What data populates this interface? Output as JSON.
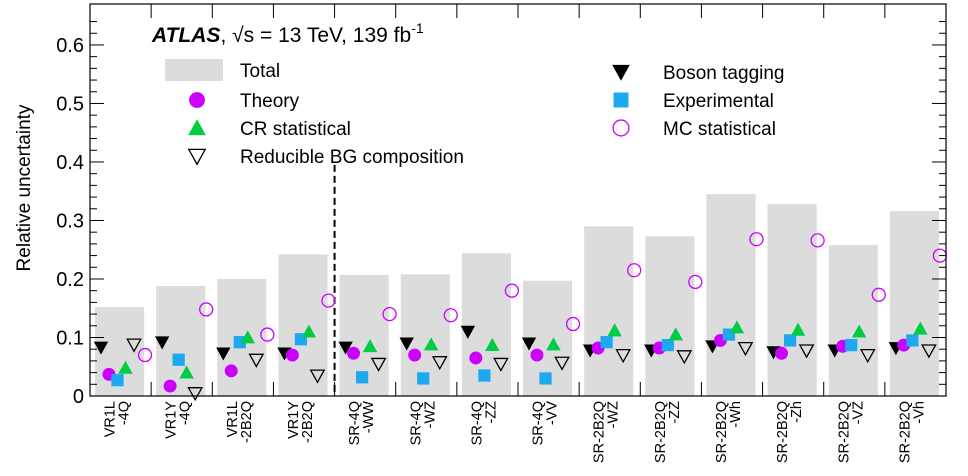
{
  "chart_data": {
    "type": "bar",
    "title": "",
    "xlabel": "",
    "ylabel": "Relative uncertainty",
    "ylim": [
      0,
      0.67
    ],
    "yticks": [
      "0",
      "0.1",
      "0.2",
      "0.3",
      "0.4",
      "0.5",
      "0.6"
    ],
    "ytick_values": [
      0,
      0.1,
      0.2,
      0.3,
      0.4,
      0.5,
      0.6
    ],
    "categories": [
      [
        "VR1L",
        "-4Q"
      ],
      [
        "VR1Y",
        "-4Q"
      ],
      [
        "VR1L",
        "-2B2Q"
      ],
      [
        "VR1Y",
        "-2B2Q"
      ],
      [
        "SR-4Q",
        "-WW"
      ],
      [
        "SR-4Q",
        "-WZ"
      ],
      [
        "SR-4Q",
        "-ZZ"
      ],
      [
        "SR-4Q",
        "-VV"
      ],
      [
        "SR-2B2Q",
        "-WZ"
      ],
      [
        "SR-2B2Q",
        "-ZZ"
      ],
      [
        "SR-2B2Q",
        "-Wh"
      ],
      [
        "SR-2B2Q",
        "-Zh"
      ],
      [
        "SR-2B2Q",
        "-VZ"
      ],
      [
        "SR-2B2Q",
        "-Vh"
      ]
    ],
    "divider_after_category": 4,
    "annotation": {
      "experiment": "ATLAS",
      "energy_text": ", √s = 13 TeV, 139 fb",
      "lumi_exp": "-1"
    },
    "legend": {
      "placement": "top",
      "left": [
        {
          "label": "Total",
          "marker": "bar",
          "color": "#dcdcdc"
        },
        {
          "label": "Theory",
          "marker": "circle-filled",
          "color": "#cc00ff"
        },
        {
          "label": "CR statistical",
          "marker": "triangle-up",
          "color": "#00cc44"
        },
        {
          "label": "Reducible BG composition",
          "marker": "triangle-down-open",
          "color": "#000000"
        }
      ],
      "right": [
        {
          "label": "Boson tagging",
          "marker": "triangle-down",
          "color": "#000000"
        },
        {
          "label": "Experimental",
          "marker": "square",
          "color": "#1ea8f0"
        },
        {
          "label": "MC statistical",
          "marker": "circle-open",
          "color": "#cc00ff"
        }
      ]
    },
    "series": [
      {
        "name": "Total",
        "marker": "bar",
        "color": "#dcdcdc",
        "values": [
          0.152,
          0.188,
          0.2,
          0.242,
          0.207,
          0.208,
          0.244,
          0.197,
          0.29,
          0.273,
          0.345,
          0.328,
          0.258,
          0.316
        ]
      },
      {
        "name": "Boson tagging",
        "marker": "triangle-down",
        "color": "#000000",
        "values": [
          0.083,
          0.092,
          0.073,
          0.073,
          0.083,
          0.09,
          0.11,
          0.09,
          0.078,
          0.078,
          0.085,
          0.075,
          0.078,
          0.082
        ]
      },
      {
        "name": "Theory",
        "marker": "circle-filled",
        "color": "#cc00ff",
        "values": [
          0.037,
          0.017,
          0.043,
          0.07,
          0.073,
          0.07,
          0.065,
          0.07,
          0.082,
          0.082,
          0.095,
          0.073,
          0.085,
          0.087
        ]
      },
      {
        "name": "Experimental",
        "marker": "square",
        "color": "#1ea8f0",
        "values": [
          0.027,
          0.062,
          0.092,
          0.097,
          0.032,
          0.03,
          0.035,
          0.03,
          0.092,
          0.087,
          0.105,
          0.095,
          0.087,
          0.095
        ]
      },
      {
        "name": "CR statistical",
        "marker": "triangle-up",
        "color": "#00cc44",
        "values": [
          0.048,
          0.04,
          0.1,
          0.11,
          0.085,
          0.088,
          0.087,
          0.088,
          0.112,
          0.105,
          0.117,
          0.113,
          0.11,
          0.115
        ]
      },
      {
        "name": "Reducible BG composition",
        "marker": "triangle-down-open",
        "color": "#000000",
        "values": [
          0.088,
          0.005,
          0.062,
          0.035,
          0.055,
          0.058,
          0.055,
          0.057,
          0.07,
          0.068,
          0.082,
          0.078,
          0.07,
          0.078
        ]
      },
      {
        "name": "MC statistical",
        "marker": "circle-open",
        "color": "#cc00ff",
        "values": [
          0.07,
          0.148,
          0.105,
          0.163,
          0.14,
          0.138,
          0.18,
          0.123,
          0.215,
          0.195,
          0.268,
          0.266,
          0.173,
          0.24
        ]
      }
    ]
  }
}
